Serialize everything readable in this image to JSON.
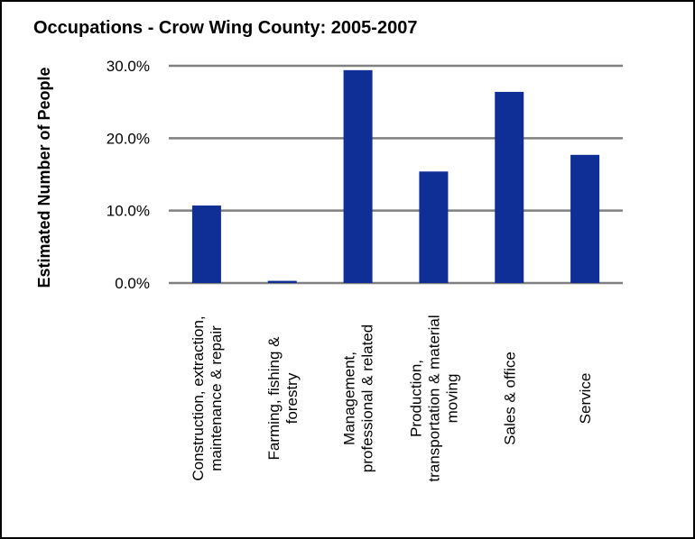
{
  "chart_data": {
    "type": "bar",
    "title": "Occupations - Crow Wing County: 2005-2007",
    "xlabel": "",
    "ylabel": "Estimated Number of People",
    "categories": [
      [
        "Construction, extraction,",
        "maintenance & repair"
      ],
      [
        "Farming, fishing &",
        "forestry"
      ],
      [
        "Management,",
        "professional & related"
      ],
      [
        "Production,",
        "transportation & material",
        "moving"
      ],
      [
        "Sales & office"
      ],
      [
        "Service"
      ]
    ],
    "values": [
      10.7,
      0.3,
      29.4,
      15.4,
      26.4,
      17.7
    ],
    "ylim": [
      0,
      30
    ],
    "yticks": [
      0,
      10,
      20,
      30
    ],
    "ytick_labels": [
      "0.0%",
      "10.0%",
      "20.0%",
      "30.0%"
    ],
    "grid": true,
    "legend": "none",
    "bar_color": "#0f2e96",
    "grid_color": "#808080"
  }
}
